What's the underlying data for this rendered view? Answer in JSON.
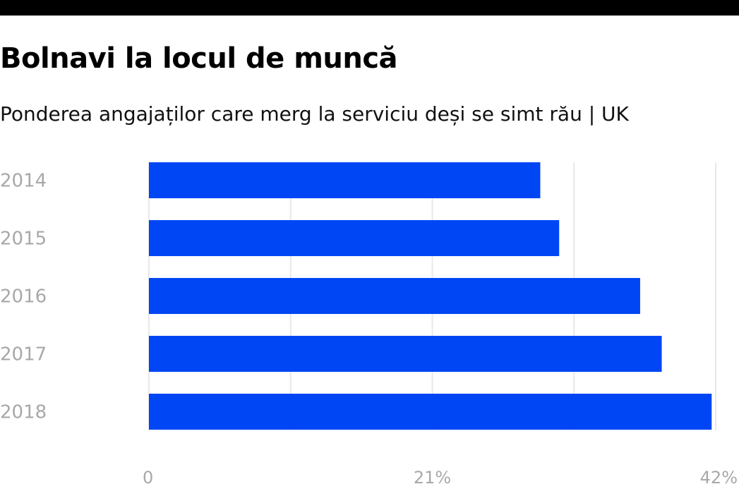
{
  "title": "Bolnavi la locul de muncă",
  "subtitle": "Ponderea angajaților care merg la serviciu deși se simt rău | UK",
  "chart_data": {
    "type": "bar",
    "orientation": "horizontal",
    "title": "Bolnavi la locul de muncă",
    "subtitle": "Ponderea angajaților care merg la serviciu deși se simt rău | UK",
    "categories": [
      "2014",
      "2015",
      "2016",
      "2017",
      "2018"
    ],
    "values": [
      29.0,
      30.4,
      36.4,
      38.0,
      41.7
    ],
    "unit": "%",
    "xlim": [
      0,
      42
    ],
    "x_ticks": [
      {
        "value": 0,
        "label": "0"
      },
      {
        "value": 21,
        "label": "21%"
      },
      {
        "value": 42,
        "label": "42%"
      }
    ],
    "gridlines": [
      0,
      10.5,
      21,
      31.5,
      42
    ],
    "grid": true,
    "bar_color": "#0046F5",
    "xlabel": "",
    "ylabel": ""
  }
}
